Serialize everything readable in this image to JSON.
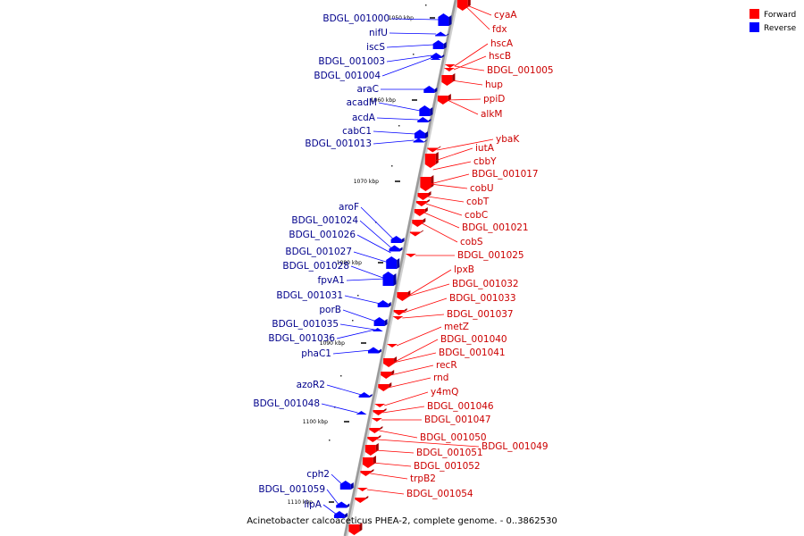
{
  "caption": "Acinetobacter calcoaceticus PHEA-2, complete genome. - 0..3862530",
  "legend": [
    {
      "label": "Forward",
      "color": "#ff0000"
    },
    {
      "label": "Reverse",
      "color": "#0000ff"
    }
  ],
  "colors": {
    "forward": "#ff0000",
    "reverse": "#0000ff",
    "forward_text": "#cc0000",
    "reverse_text": "#00008b",
    "backbone": "#9a9a9a"
  },
  "ticks": [
    "1050 kbp",
    "1060 kbp",
    "1070 kbp",
    "1080 kbp",
    "1090 kbp",
    "1100 kbp",
    "1110 kbp"
  ],
  "reverse_genes": [
    "BDGL_001000",
    "nifU",
    "iscS",
    "BDGL_001003",
    "BDGL_001004",
    "araC",
    "acadM",
    "acdA",
    "cabC1",
    "BDGL_001013",
    "aroF",
    "BDGL_001024",
    "BDGL_001026",
    "BDGL_001027",
    "BDGL_001028",
    "fpvA1",
    "BDGL_001031",
    "porB",
    "BDGL_001035",
    "BDGL_001036",
    "phaC1",
    "azoR2",
    "BDGL_001048",
    "cph2",
    "BDGL_001059",
    "lipA"
  ],
  "forward_genes": [
    "cyaA",
    "fdx",
    "hscA",
    "hscB",
    "BDGL_001005",
    "hup",
    "ppiD",
    "alkM",
    "ybaK",
    "iutA",
    "cbbY",
    "BDGL_001017",
    "cobU",
    "cobT",
    "cobC",
    "BDGL_001021",
    "cobS",
    "BDGL_001025",
    "lpxB",
    "BDGL_001032",
    "BDGL_001033",
    "BDGL_001037",
    "metZ",
    "BDGL_001040",
    "BDGL_001041",
    "recR",
    "rnd",
    "y4mQ",
    "BDGL_001046",
    "BDGL_001047",
    "BDGL_001050",
    "BDGL_001049",
    "BDGL_001051",
    "BDGL_001052",
    "trpB2",
    "BDGL_001054"
  ]
}
